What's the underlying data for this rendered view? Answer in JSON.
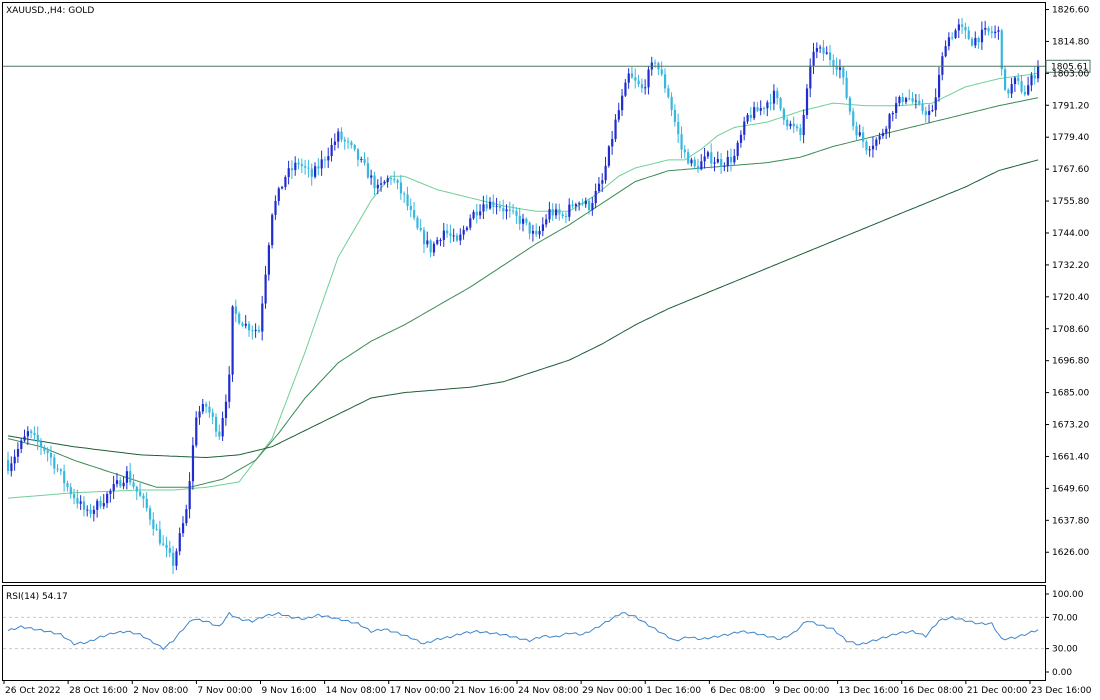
{
  "header": {
    "symbol_label": "XAUUSD.,H4:  GOLD"
  },
  "rsi_header": {
    "label": "RSI(14) 54.17"
  },
  "current_price": {
    "label": "1805.61",
    "value": 1805.61
  },
  "colors": {
    "bull": "#1f2ccf",
    "bear": "#36b7df",
    "ma_fast": "#6fcf97",
    "ma_mid": "#3a8a55",
    "ma_slow": "#1e5e38",
    "rsi": "#3f86c9",
    "grid": "#c8c8c8",
    "price_line": "#4e7a62",
    "price_tag_bg": "#ffffff"
  },
  "chart_data": [
    {
      "type": "candlestick",
      "title": "XAUUSD.,H4:  GOLD",
      "ylim": [
        1615,
        1829
      ],
      "ytick_labels": [
        "1826.60",
        "1814.80",
        "1803.00",
        "1791.20",
        "1779.40",
        "1767.60",
        "1755.80",
        "1744.00",
        "1732.20",
        "1720.40",
        "1708.60",
        "1696.80",
        "1685.00",
        "1673.20",
        "1661.40",
        "1649.60",
        "1637.80",
        "1626.00"
      ],
      "ytick_values": [
        1826.6,
        1814.8,
        1803.0,
        1791.2,
        1779.4,
        1767.6,
        1755.8,
        1744.0,
        1732.2,
        1720.4,
        1708.6,
        1696.8,
        1685.0,
        1673.2,
        1661.4,
        1649.6,
        1637.8,
        1626.0
      ],
      "xtick_labels": [
        "26 Oct 2022",
        "28 Oct 16:00",
        "2 Nov 08:00",
        "7 Nov 00:00",
        "9 Nov 16:00",
        "14 Nov 08:00",
        "17 Nov 00:00",
        "21 Nov 16:00",
        "24 Nov 08:00",
        "29 Nov 00:00",
        "1 Dec 16:00",
        "6 Dec 08:00",
        "9 Dec 00:00",
        "13 Dec 16:00",
        "16 Dec 08:00",
        "21 Dec 00:00",
        "23 Dec 16:00"
      ],
      "close_anchors": [
        [
          0,
          1658
        ],
        [
          6,
          1670
        ],
        [
          12,
          1663
        ],
        [
          18,
          1650
        ],
        [
          24,
          1640
        ],
        [
          30,
          1647
        ],
        [
          36,
          1655
        ],
        [
          42,
          1642
        ],
        [
          47,
          1628
        ],
        [
          50,
          1622
        ],
        [
          54,
          1641
        ],
        [
          57,
          1677
        ],
        [
          60,
          1680
        ],
        [
          64,
          1670
        ],
        [
          67,
          1690
        ],
        [
          68,
          1715
        ],
        [
          72,
          1710
        ],
        [
          76,
          1708
        ],
        [
          80,
          1752
        ],
        [
          84,
          1765
        ],
        [
          88,
          1770
        ],
        [
          92,
          1765
        ],
        [
          96,
          1772
        ],
        [
          100,
          1780
        ],
        [
          104,
          1775
        ],
        [
          108,
          1768
        ],
        [
          112,
          1760
        ],
        [
          116,
          1765
        ],
        [
          120,
          1757
        ],
        [
          124,
          1745
        ],
        [
          128,
          1738
        ],
        [
          132,
          1745
        ],
        [
          136,
          1740
        ],
        [
          140,
          1750
        ],
        [
          144,
          1755
        ],
        [
          148,
          1755
        ],
        [
          152,
          1751
        ],
        [
          156,
          1748
        ],
        [
          160,
          1742
        ],
        [
          164,
          1752
        ],
        [
          168,
          1750
        ],
        [
          172,
          1756
        ],
        [
          176,
          1754
        ],
        [
          180,
          1763
        ],
        [
          184,
          1785
        ],
        [
          188,
          1802
        ],
        [
          192,
          1797
        ],
        [
          196,
          1808
        ],
        [
          200,
          1795
        ],
        [
          204,
          1775
        ],
        [
          208,
          1768
        ],
        [
          212,
          1772
        ],
        [
          216,
          1770
        ],
        [
          220,
          1772
        ],
        [
          224,
          1787
        ],
        [
          228,
          1790
        ],
        [
          232,
          1795
        ],
        [
          236,
          1785
        ],
        [
          240,
          1780
        ],
        [
          244,
          1812
        ],
        [
          248,
          1810
        ],
        [
          252,
          1805
        ],
        [
          256,
          1784
        ],
        [
          260,
          1776
        ],
        [
          264,
          1779
        ],
        [
          268,
          1790
        ],
        [
          272,
          1795
        ],
        [
          276,
          1790
        ],
        [
          280,
          1788
        ],
        [
          284,
          1815
        ],
        [
          288,
          1820
        ],
        [
          292,
          1815
        ],
        [
          296,
          1818
        ],
        [
          300,
          1818
        ],
        [
          302,
          1795
        ],
        [
          305,
          1800
        ],
        [
          308,
          1796
        ],
        [
          311,
          1803
        ],
        [
          312,
          1805.61
        ]
      ],
      "moving_averages": [
        {
          "color": "ma_fast",
          "values": [
            [
              0,
              1646
            ],
            [
              20,
              1648
            ],
            [
              40,
              1649
            ],
            [
              50,
              1649
            ],
            [
              60,
              1650
            ],
            [
              70,
              1652
            ],
            [
              80,
              1668
            ],
            [
              90,
              1700
            ],
            [
              100,
              1735
            ],
            [
              110,
              1756
            ],
            [
              116,
              1765
            ],
            [
              120,
              1765
            ],
            [
              130,
              1760
            ],
            [
              140,
              1757
            ],
            [
              150,
              1754
            ],
            [
              160,
              1752
            ],
            [
              170,
              1752
            ],
            [
              178,
              1758
            ],
            [
              185,
              1765
            ],
            [
              190,
              1768
            ],
            [
              200,
              1771
            ],
            [
              205,
              1771
            ],
            [
              210,
              1775
            ],
            [
              215,
              1780
            ],
            [
              220,
              1783
            ],
            [
              230,
              1785
            ],
            [
              240,
              1789
            ],
            [
              250,
              1792
            ],
            [
              260,
              1791
            ],
            [
              270,
              1791
            ],
            [
              280,
              1792
            ],
            [
              290,
              1798
            ],
            [
              300,
              1801
            ],
            [
              312,
              1803
            ]
          ]
        },
        {
          "color": "ma_mid",
          "values": [
            [
              0,
              1668
            ],
            [
              10,
              1665
            ],
            [
              20,
              1660
            ],
            [
              30,
              1656
            ],
            [
              40,
              1652
            ],
            [
              45,
              1650
            ],
            [
              55,
              1650
            ],
            [
              65,
              1653
            ],
            [
              75,
              1660
            ],
            [
              82,
              1670
            ],
            [
              90,
              1683
            ],
            [
              100,
              1696
            ],
            [
              110,
              1704
            ],
            [
              120,
              1710
            ],
            [
              130,
              1717
            ],
            [
              140,
              1724
            ],
            [
              150,
              1732
            ],
            [
              160,
              1740
            ],
            [
              170,
              1747
            ],
            [
              180,
              1755
            ],
            [
              190,
              1763
            ],
            [
              200,
              1767
            ],
            [
              210,
              1768
            ],
            [
              220,
              1769
            ],
            [
              230,
              1770
            ],
            [
              240,
              1772
            ],
            [
              250,
              1776
            ],
            [
              260,
              1779
            ],
            [
              270,
              1782
            ],
            [
              280,
              1785
            ],
            [
              290,
              1788
            ],
            [
              300,
              1791
            ],
            [
              312,
              1794
            ]
          ]
        },
        {
          "color": "ma_slow",
          "values": [
            [
              0,
              1669
            ],
            [
              20,
              1665
            ],
            [
              40,
              1662
            ],
            [
              60,
              1661
            ],
            [
              70,
              1662
            ],
            [
              80,
              1665
            ],
            [
              90,
              1671
            ],
            [
              100,
              1677
            ],
            [
              110,
              1683
            ],
            [
              120,
              1685
            ],
            [
              130,
              1686
            ],
            [
              140,
              1687
            ],
            [
              150,
              1689
            ],
            [
              160,
              1693
            ],
            [
              170,
              1697
            ],
            [
              180,
              1703
            ],
            [
              190,
              1710
            ],
            [
              200,
              1716
            ],
            [
              210,
              1721
            ],
            [
              220,
              1726
            ],
            [
              230,
              1731
            ],
            [
              240,
              1736
            ],
            [
              250,
              1741
            ],
            [
              260,
              1746
            ],
            [
              270,
              1751
            ],
            [
              280,
              1756
            ],
            [
              290,
              1761
            ],
            [
              300,
              1767
            ],
            [
              312,
              1771
            ]
          ]
        }
      ]
    },
    {
      "type": "line",
      "title": "RSI(14) 54.17",
      "ylim": [
        0,
        100
      ],
      "ytick_labels": [
        "100.00",
        "70.00",
        "30.00",
        "0.00"
      ],
      "ytick_values": [
        100,
        70,
        30,
        0
      ],
      "levels": [
        70,
        30
      ],
      "values": [
        [
          0,
          53
        ],
        [
          4,
          58
        ],
        [
          8,
          55
        ],
        [
          12,
          52
        ],
        [
          16,
          48
        ],
        [
          20,
          36
        ],
        [
          24,
          38
        ],
        [
          28,
          45
        ],
        [
          32,
          50
        ],
        [
          36,
          52
        ],
        [
          40,
          48
        ],
        [
          44,
          38
        ],
        [
          47,
          30
        ],
        [
          50,
          40
        ],
        [
          53,
          55
        ],
        [
          56,
          68
        ],
        [
          60,
          65
        ],
        [
          64,
          58
        ],
        [
          67,
          75
        ],
        [
          70,
          68
        ],
        [
          74,
          65
        ],
        [
          78,
          72
        ],
        [
          82,
          75
        ],
        [
          86,
          70
        ],
        [
          90,
          68
        ],
        [
          94,
          73
        ],
        [
          98,
          70
        ],
        [
          102,
          66
        ],
        [
          106,
          62
        ],
        [
          110,
          52
        ],
        [
          114,
          55
        ],
        [
          118,
          50
        ],
        [
          122,
          44
        ],
        [
          126,
          36
        ],
        [
          130,
          42
        ],
        [
          134,
          45
        ],
        [
          138,
          50
        ],
        [
          142,
          52
        ],
        [
          146,
          50
        ],
        [
          150,
          48
        ],
        [
          154,
          44
        ],
        [
          158,
          40
        ],
        [
          162,
          46
        ],
        [
          166,
          45
        ],
        [
          170,
          50
        ],
        [
          174,
          48
        ],
        [
          178,
          56
        ],
        [
          182,
          66
        ],
        [
          186,
          76
        ],
        [
          190,
          71
        ],
        [
          194,
          60
        ],
        [
          198,
          50
        ],
        [
          202,
          40
        ],
        [
          206,
          45
        ],
        [
          210,
          42
        ],
        [
          214,
          45
        ],
        [
          218,
          48
        ],
        [
          222,
          52
        ],
        [
          226,
          50
        ],
        [
          230,
          46
        ],
        [
          234,
          42
        ],
        [
          238,
          50
        ],
        [
          242,
          66
        ],
        [
          246,
          60
        ],
        [
          250,
          55
        ],
        [
          254,
          40
        ],
        [
          258,
          35
        ],
        [
          262,
          40
        ],
        [
          266,
          45
        ],
        [
          270,
          50
        ],
        [
          274,
          52
        ],
        [
          278,
          46
        ],
        [
          282,
          66
        ],
        [
          286,
          70
        ],
        [
          290,
          66
        ],
        [
          294,
          62
        ],
        [
          298,
          62
        ],
        [
          301,
          42
        ],
        [
          305,
          44
        ],
        [
          308,
          48
        ],
        [
          312,
          54.17
        ]
      ]
    }
  ]
}
